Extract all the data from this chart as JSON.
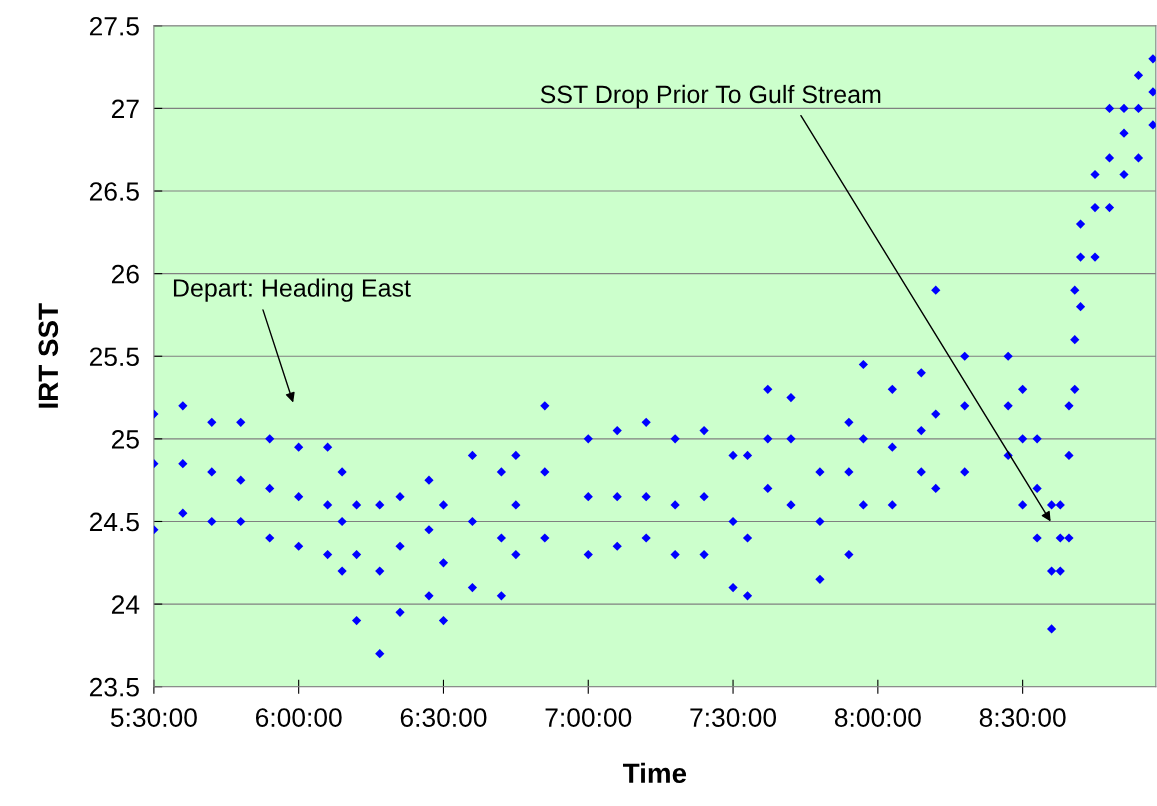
{
  "chart_data": {
    "type": "scatter",
    "xlabel": "Time",
    "ylabel": "IRT SST",
    "x": [
      5.5,
      5.5,
      5.5,
      5.6,
      5.6,
      5.6,
      5.7,
      5.7,
      5.7,
      5.8,
      5.8,
      5.8,
      5.9,
      5.9,
      5.9,
      6.0,
      6.0,
      6.0,
      6.1,
      6.1,
      6.1,
      6.15,
      6.15,
      6.15,
      6.2,
      6.2,
      6.2,
      6.28,
      6.28,
      6.28,
      6.35,
      6.35,
      6.35,
      6.45,
      6.45,
      6.45,
      6.5,
      6.5,
      6.5,
      6.6,
      6.6,
      6.6,
      6.7,
      6.7,
      6.7,
      6.75,
      6.75,
      6.75,
      6.85,
      6.85,
      6.85,
      7.0,
      7.0,
      7.0,
      7.1,
      7.1,
      7.1,
      7.2,
      7.2,
      7.2,
      7.3,
      7.3,
      7.3,
      7.4,
      7.4,
      7.4,
      7.5,
      7.5,
      7.5,
      7.55,
      7.55,
      7.55,
      7.62,
      7.62,
      7.62,
      7.7,
      7.7,
      7.7,
      7.8,
      7.8,
      7.8,
      7.9,
      7.9,
      7.9,
      7.95,
      7.95,
      7.95,
      8.05,
      8.05,
      8.05,
      8.15,
      8.15,
      8.15,
      8.2,
      8.2,
      8.2,
      8.3,
      8.3,
      8.3,
      8.45,
      8.45,
      8.45,
      8.5,
      8.5,
      8.5,
      8.55,
      8.55,
      8.55,
      8.6,
      8.6,
      8.6,
      8.63,
      8.63,
      8.63,
      8.66,
      8.66,
      8.66,
      8.68,
      8.68,
      8.68,
      8.7,
      8.7,
      8.7,
      8.75,
      8.75,
      8.75,
      8.8,
      8.8,
      8.8,
      8.85,
      8.85,
      8.85,
      8.9,
      8.9,
      8.9,
      8.95,
      8.95,
      8.95
    ],
    "values": [
      25.15,
      24.45,
      24.85,
      25.2,
      24.55,
      24.85,
      25.1,
      24.5,
      24.8,
      25.1,
      24.5,
      24.75,
      25.0,
      24.4,
      24.7,
      24.95,
      24.35,
      24.65,
      24.95,
      24.3,
      24.6,
      24.8,
      24.2,
      24.5,
      24.6,
      23.9,
      24.3,
      24.6,
      23.7,
      24.2,
      24.65,
      23.95,
      24.35,
      24.75,
      24.05,
      24.45,
      24.6,
      23.9,
      24.25,
      24.9,
      24.1,
      24.5,
      24.8,
      24.05,
      24.4,
      24.9,
      24.3,
      24.6,
      25.2,
      24.4,
      24.8,
      25.0,
      24.3,
      24.65,
      25.05,
      24.35,
      24.65,
      25.1,
      24.4,
      24.65,
      25.0,
      24.3,
      24.6,
      25.05,
      24.3,
      24.65,
      24.9,
      24.1,
      24.5,
      24.9,
      24.05,
      24.4,
      25.3,
      24.7,
      25.0,
      25.25,
      24.6,
      25.0,
      24.8,
      24.15,
      24.5,
      25.1,
      24.3,
      24.8,
      25.45,
      24.6,
      25.0,
      25.3,
      24.6,
      24.95,
      25.4,
      24.8,
      25.05,
      25.9,
      24.7,
      25.15,
      25.5,
      24.8,
      25.2,
      25.5,
      24.9,
      25.2,
      25.3,
      24.6,
      25.0,
      25.0,
      24.4,
      24.7,
      24.6,
      23.85,
      24.2,
      24.6,
      24.2,
      24.4,
      25.2,
      24.4,
      24.9,
      25.9,
      25.3,
      25.6,
      26.3,
      25.8,
      26.1,
      26.6,
      26.1,
      26.4,
      27.0,
      26.4,
      26.7,
      27.0,
      26.6,
      26.85,
      27.2,
      26.7,
      27.0,
      27.3,
      26.9,
      27.1
    ],
    "color": "#0000ff",
    "marker": "diamond",
    "xlim": [
      5.5,
      8.96
    ],
    "xticks": [
      {
        "value": 5.5,
        "label": "5:30:00"
      },
      {
        "value": 6.0,
        "label": "6:00:00"
      },
      {
        "value": 6.5,
        "label": "6:30:00"
      },
      {
        "value": 7.0,
        "label": "7:00:00"
      },
      {
        "value": 7.5,
        "label": "7:30:00"
      },
      {
        "value": 8.0,
        "label": "8:00:00"
      },
      {
        "value": 8.5,
        "label": "8:30:00"
      }
    ],
    "ylim": [
      23.5,
      27.5
    ],
    "yticks": [
      {
        "value": 23.5,
        "label": "23.5"
      },
      {
        "value": 24,
        "label": "24"
      },
      {
        "value": 24.5,
        "label": "24.5"
      },
      {
        "value": 25,
        "label": "25"
      },
      {
        "value": 25.5,
        "label": "25.5"
      },
      {
        "value": 26,
        "label": "26"
      },
      {
        "value": 26.5,
        "label": "26.5"
      },
      {
        "value": 27,
        "label": "27"
      },
      {
        "value": 27.5,
        "label": "27.5"
      }
    ],
    "grid": "y",
    "annotations": [
      "Depart: Heading East",
      "SST Drop Prior To Gulf Stream"
    ]
  }
}
